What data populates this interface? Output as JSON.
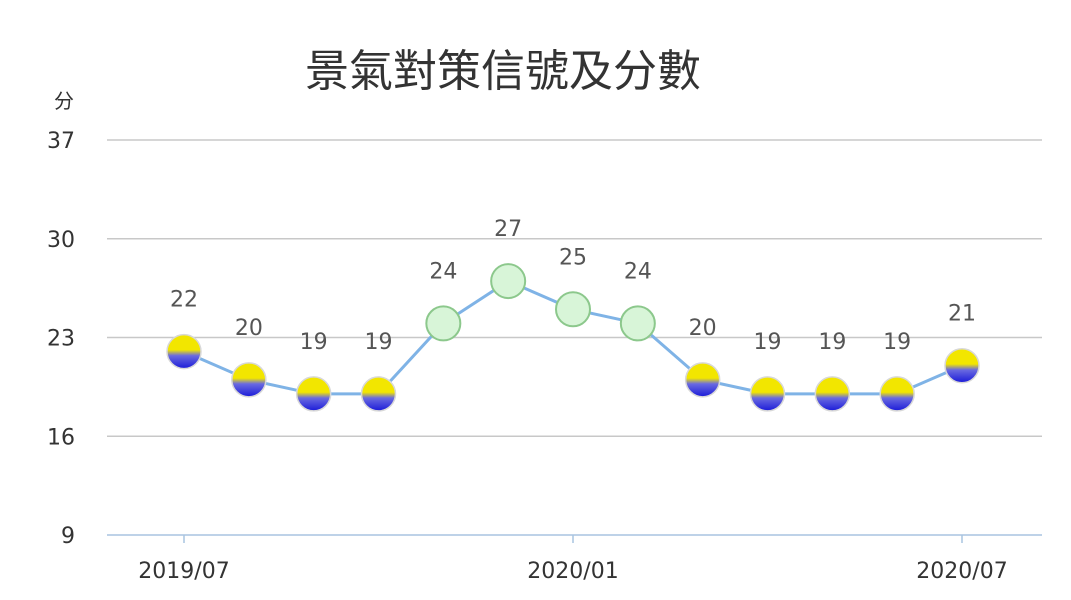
{
  "chart_data": {
    "type": "line",
    "title": "景氣對策信號及分數",
    "y_unit_label": "分",
    "ylim": [
      9,
      37
    ],
    "yticks": [
      9,
      16,
      23,
      30,
      37
    ],
    "x": [
      "2019/07",
      "2019/08",
      "2019/09",
      "2019/10",
      "2019/11",
      "2019/12",
      "2020/01",
      "2020/02",
      "2020/03",
      "2020/04",
      "2020/05",
      "2020/06",
      "2020/07"
    ],
    "x_tick_labels": [
      "2019/07",
      "2020/01",
      "2020/07"
    ],
    "values": [
      22,
      20,
      19,
      19,
      24,
      27,
      25,
      24,
      20,
      19,
      19,
      19,
      21
    ],
    "signals": [
      "yellow-blue",
      "yellow-blue",
      "yellow-blue",
      "yellow-blue",
      "green",
      "green",
      "green",
      "green",
      "yellow-blue",
      "yellow-blue",
      "yellow-blue",
      "yellow-blue",
      "yellow-blue"
    ],
    "grid": true,
    "colors": {
      "line": "#7fb3e6",
      "green_fill": "#d8f5d8",
      "green_stroke": "#8cc88c",
      "yellow": "#f2e600",
      "blue": "#1a1ad9",
      "grid": "#c8c8c8",
      "axis": "#a9c4e0"
    }
  }
}
